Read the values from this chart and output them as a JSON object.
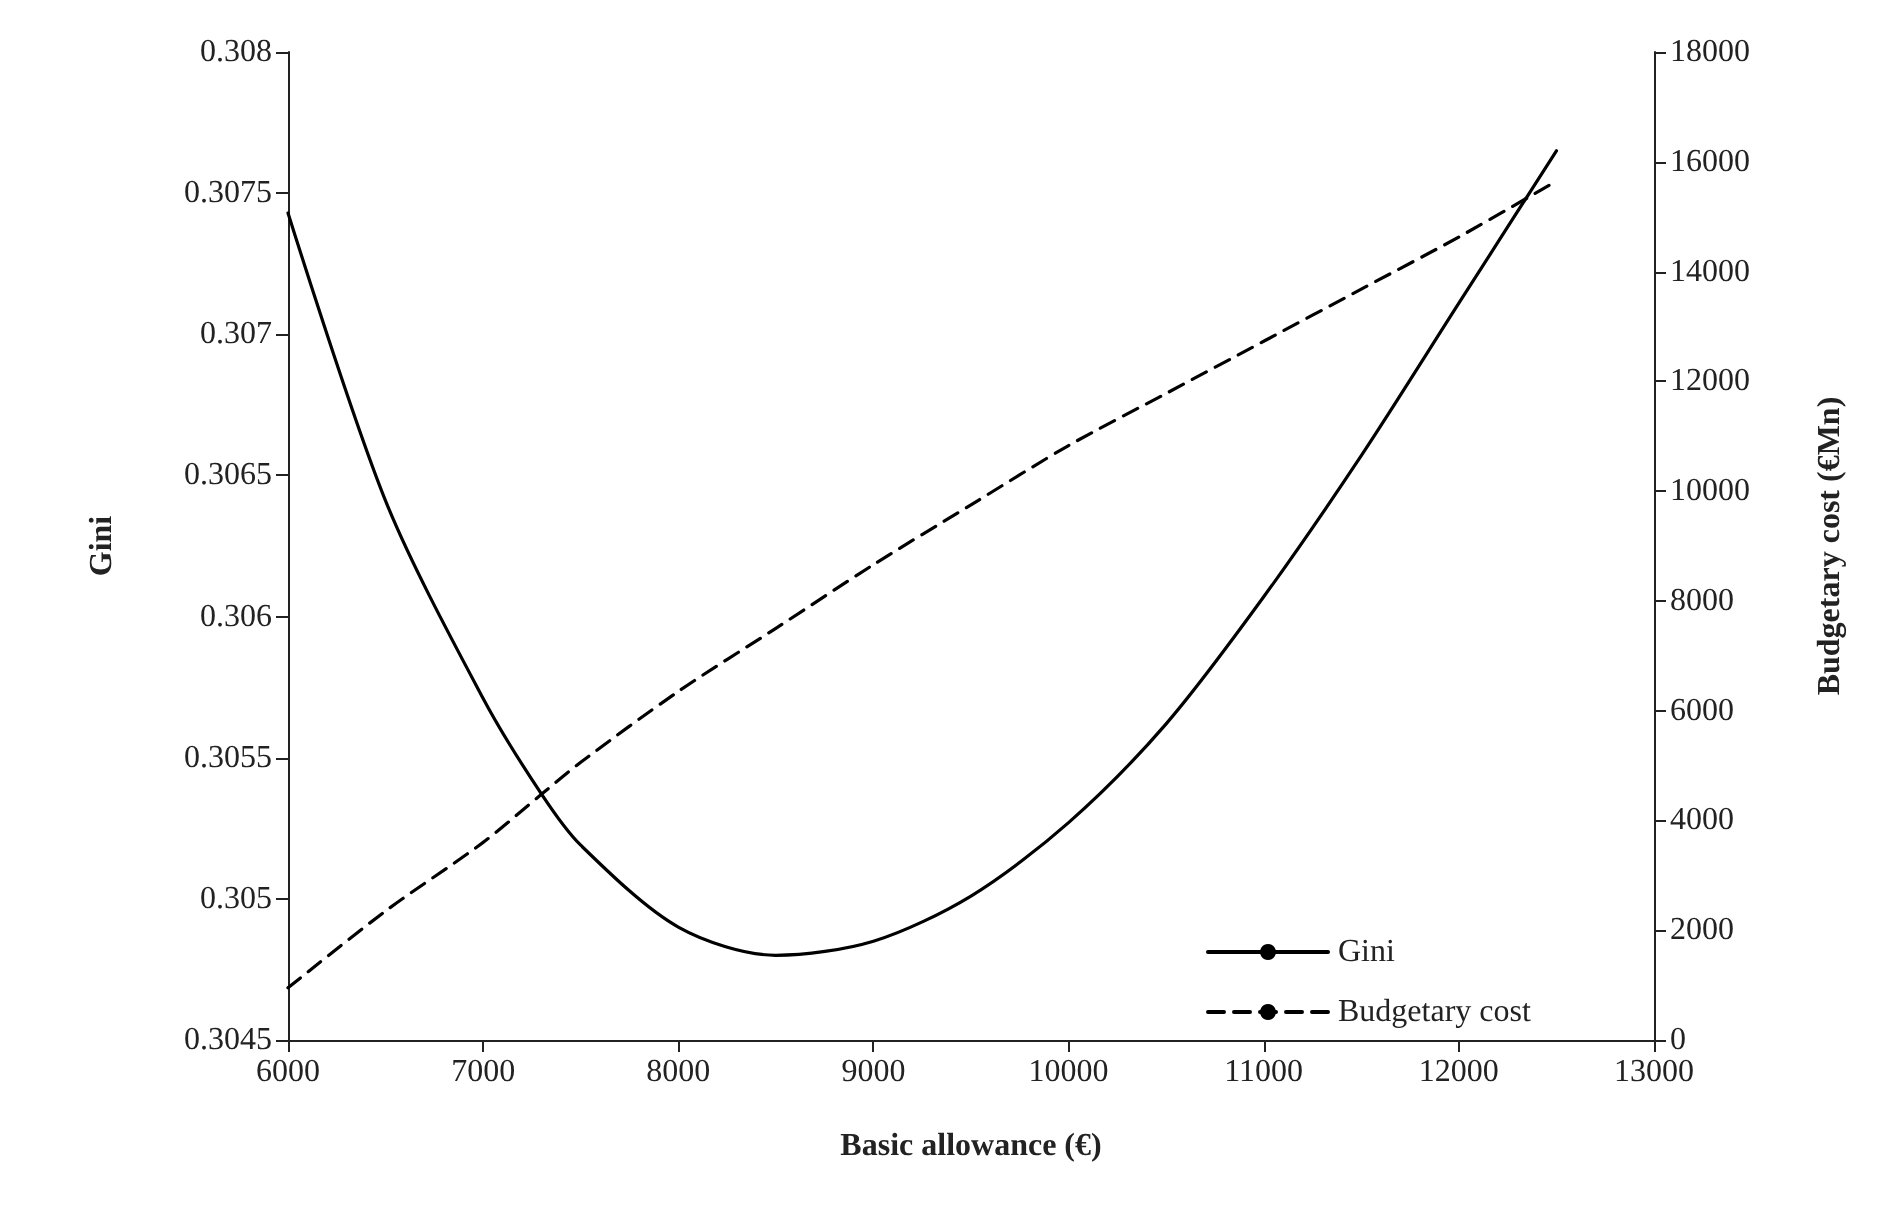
{
  "chart_data": {
    "type": "line",
    "xlabel": "Basic allowance (€)",
    "ylabel": "Gini",
    "y2label": "Budgetary cost (€Mn)",
    "x": [
      6000,
      6500,
      7000,
      7300,
      7500,
      8000,
      8500,
      9000,
      9500,
      10000,
      10500,
      11000,
      11500,
      12000,
      12500
    ],
    "series": [
      {
        "name": "Gini",
        "color": "#000000",
        "line_style": "solid",
        "values": [
          0.30743,
          0.30641,
          0.30571,
          0.30537,
          0.30519,
          0.3049,
          0.3048,
          0.30485,
          0.30501,
          0.30527,
          0.30562,
          0.30607,
          0.30657,
          0.30711,
          0.30765
        ]
      },
      {
        "name": "Budgetary cost",
        "color": "#000000",
        "line_style": "dashed",
        "axis": "y2",
        "values": [
          950,
          2350,
          3600,
          4480,
          5060,
          6350,
          7500,
          8660,
          9750,
          10830,
          11780,
          12730,
          13680,
          14630,
          15650
        ]
      }
    ],
    "xlim": [
      6000,
      13000
    ],
    "xticks": [
      6000,
      7000,
      8000,
      9000,
      10000,
      11000,
      12000,
      13000
    ],
    "ylim": [
      0.3045,
      0.308
    ],
    "yticks": [
      0.3045,
      0.305,
      0.3055,
      0.306,
      0.3065,
      0.307,
      0.3075,
      0.308
    ],
    "y2lim": [
      0,
      18000
    ],
    "y2ticks": [
      0,
      2000,
      4000,
      6000,
      8000,
      10000,
      12000,
      14000,
      16000,
      18000
    ],
    "legend": "bottom right",
    "grid": false,
    "marker": "none"
  }
}
